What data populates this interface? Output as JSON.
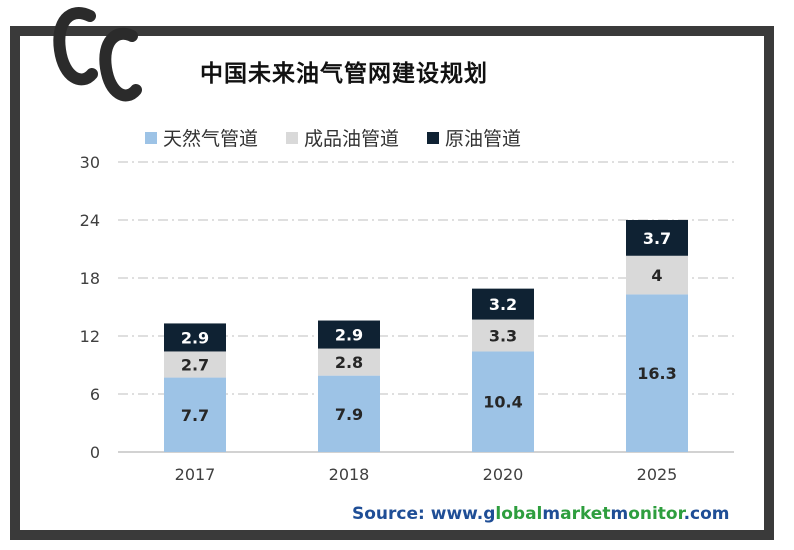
{
  "title": "中国未来油气管网建设规划",
  "source": {
    "prefix": "Source: www.",
    "parts": [
      {
        "text": "g",
        "hl": false
      },
      {
        "text": "lobal",
        "hl": true
      },
      {
        "text": "m",
        "hl": false
      },
      {
        "text": "arket",
        "hl": true
      },
      {
        "text": "m",
        "hl": false
      },
      {
        "text": "onitor",
        "hl": true
      },
      {
        "text": ".com",
        "hl": false
      }
    ]
  },
  "colors": {
    "natural_gas": "#9dc3e6",
    "product_oil": "#d9d9d9",
    "crude_oil": "#0f2233",
    "grid": "#bfbfbf",
    "frame": "#3a3a3a"
  },
  "chart_data": {
    "type": "bar",
    "stacked": true,
    "title": "中国未来油气管网建设规划",
    "categories": [
      "2017",
      "2018",
      "2020",
      "2025"
    ],
    "series": [
      {
        "name": "天然气管道",
        "values": [
          7.7,
          7.9,
          10.4,
          16.3
        ],
        "color": "#9dc3e6",
        "label_color": "#262626"
      },
      {
        "name": "成品油管道",
        "values": [
          2.7,
          2.8,
          3.3,
          4
        ],
        "color": "#d9d9d9",
        "label_color": "#262626"
      },
      {
        "name": "原油管道",
        "values": [
          2.9,
          2.9,
          3.2,
          3.7
        ],
        "color": "#0f2233",
        "label_color": "#ffffff"
      }
    ],
    "ylim": [
      0,
      30
    ],
    "yticks": [
      0,
      6,
      12,
      18,
      24,
      30
    ],
    "legend_position": "top",
    "grid": true
  }
}
